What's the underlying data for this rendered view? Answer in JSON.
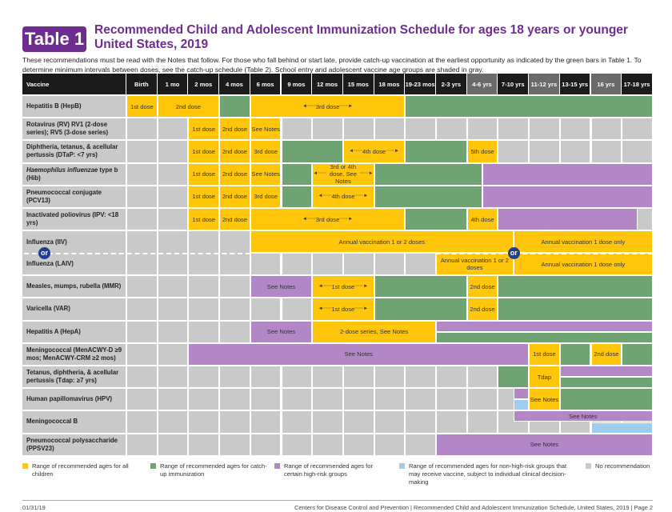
{
  "header": {
    "badge": "Table 1",
    "title_line1": "Recommended Child and Adolescent Immunization Schedule for ages 18 years or younger",
    "title_line2": "United States, 2019",
    "intro": "These recommendations must be read with the Notes that follow. For those who fall behind or start late, provide catch-up vaccination at the earliest opportunity as indicated by the green bars in Table 1. To determine minimum intervals between doses, see the catch-up schedule (Table 2). School entry and adolescent vaccine age groups are shaded in gray."
  },
  "colors": {
    "yellow": "#FFC60B",
    "green": "#6FA374",
    "purple": "#B386C6",
    "blue": "#9ECDF0",
    "gray": "#C9C9C9",
    "header": "#1b1b1b",
    "header_shaded": "#6a6a6a",
    "title": "#6E2C91",
    "or_badge": "#1f3e8f"
  },
  "columns": {
    "vaccine_header": "Vaccine",
    "ages": [
      "Birth",
      "1 mo",
      "2 mos",
      "4 mos",
      "6 mos",
      "9 mos",
      "12 mos",
      "15 mos",
      "18 mos",
      "19-23 mos",
      "2-3 yrs",
      "4-6 yrs",
      "7-10 yrs",
      "11-12 yrs",
      "13-15 yrs",
      "16 yrs",
      "17-18 yrs"
    ],
    "shaded_age_groups": [
      "4-6 yrs",
      "11-12 yrs",
      "16 yrs"
    ]
  },
  "rows": [
    {
      "name": "Hepatitis B (HepB)",
      "segments": [
        {
          "start": 0,
          "span": 1,
          "color": "yellow",
          "label": "1st dose"
        },
        {
          "start": 1,
          "span": 2,
          "color": "yellow",
          "label": "2nd dose"
        },
        {
          "start": 3,
          "span": 1,
          "color": "green"
        },
        {
          "start": 4,
          "span": 5,
          "color": "yellow",
          "label": "3rd dose",
          "arrows": true
        },
        {
          "start": 9,
          "span": 8,
          "color": "green"
        }
      ]
    },
    {
      "name": "Rotavirus (RV) RV1 (2-dose series); RV5 (3-dose series)",
      "segments": [
        {
          "start": 2,
          "span": 1,
          "color": "yellow",
          "label": "1st dose"
        },
        {
          "start": 3,
          "span": 1,
          "color": "yellow",
          "label": "2nd dose"
        },
        {
          "start": 4,
          "span": 1,
          "color": "yellow",
          "label": "See Notes"
        }
      ]
    },
    {
      "name": "Diphtheria, tetanus, & acellular pertussis (DTaP: <7 yrs)",
      "segments": [
        {
          "start": 2,
          "span": 1,
          "color": "yellow",
          "label": "1st dose"
        },
        {
          "start": 3,
          "span": 1,
          "color": "yellow",
          "label": "2nd dose"
        },
        {
          "start": 4,
          "span": 1,
          "color": "yellow",
          "label": "3rd dose"
        },
        {
          "start": 5,
          "span": 2,
          "color": "green"
        },
        {
          "start": 7,
          "span": 2,
          "color": "yellow",
          "label": "4th dose",
          "arrows": true
        },
        {
          "start": 9,
          "span": 2,
          "color": "green"
        },
        {
          "start": 11,
          "span": 1,
          "color": "yellow",
          "label": "5th dose"
        }
      ]
    },
    {
      "name_italic": "Haemophilus influenzae",
      "name": " type b (Hib)",
      "segments": [
        {
          "start": 2,
          "span": 1,
          "color": "yellow",
          "label": "1st dose"
        },
        {
          "start": 3,
          "span": 1,
          "color": "yellow",
          "label": "2nd dose"
        },
        {
          "start": 4,
          "span": 1,
          "color": "yellow",
          "label": "See Notes"
        },
        {
          "start": 5,
          "span": 1,
          "color": "green"
        },
        {
          "start": 6,
          "span": 2,
          "color": "yellow",
          "label": "3rd or 4th dose, See Notes",
          "arrows": true
        },
        {
          "start": 8,
          "span": 3.5,
          "color": "green"
        },
        {
          "start": 11.5,
          "span": 5.5,
          "color": "purple"
        }
      ]
    },
    {
      "name": "Pneumococcal conjugate (PCV13)",
      "segments": [
        {
          "start": 2,
          "span": 1,
          "color": "yellow",
          "label": "1st dose"
        },
        {
          "start": 3,
          "span": 1,
          "color": "yellow",
          "label": "2nd dose"
        },
        {
          "start": 4,
          "span": 1,
          "color": "yellow",
          "label": "3rd dose"
        },
        {
          "start": 5,
          "span": 1,
          "color": "green"
        },
        {
          "start": 6,
          "span": 2,
          "color": "yellow",
          "label": "4th dose",
          "arrows": true
        },
        {
          "start": 8,
          "span": 3.5,
          "color": "green"
        },
        {
          "start": 11.5,
          "span": 5.5,
          "color": "purple"
        }
      ]
    },
    {
      "name": "Inactivated poliovirus (IPV: <18 yrs)",
      "segments": [
        {
          "start": 2,
          "span": 1,
          "color": "yellow",
          "label": "1st dose"
        },
        {
          "start": 3,
          "span": 1,
          "color": "yellow",
          "label": "2nd dose"
        },
        {
          "start": 4,
          "span": 5,
          "color": "yellow",
          "label": "3rd dose",
          "arrows": true
        },
        {
          "start": 9,
          "span": 2,
          "color": "green"
        },
        {
          "start": 11,
          "span": 1,
          "color": "yellow",
          "label": "4th dose"
        },
        {
          "start": 12,
          "span": 4.5,
          "color": "purple"
        }
      ]
    },
    {
      "name": "Influenza (IIV)",
      "name_alt": "Influenza (LAIV)",
      "or_label": "or",
      "double": true,
      "segments": [
        {
          "start": 4,
          "span": 8.5,
          "color": "yellow",
          "part": "top",
          "label": "Annual vaccination 1 or 2 doses"
        },
        {
          "start": 12.5,
          "span": 4.5,
          "color": "yellow",
          "part": "top",
          "label": "Annual vaccination 1 dose only"
        },
        {
          "start": 10,
          "span": 2.5,
          "color": "yellow",
          "part": "bottom",
          "label": "Annual vaccination 1 or 2 doses"
        },
        {
          "start": 12.5,
          "span": 4.5,
          "color": "yellow",
          "part": "bottom",
          "label": "Annual vaccination 1 dose only"
        }
      ]
    },
    {
      "name": "Measles, mumps, rubella (MMR)",
      "segments": [
        {
          "start": 4,
          "span": 2,
          "color": "purple",
          "label": "See Notes"
        },
        {
          "start": 6,
          "span": 2,
          "color": "yellow",
          "label": "1st dose",
          "arrows": true
        },
        {
          "start": 8,
          "span": 3,
          "color": "green"
        },
        {
          "start": 11,
          "span": 1,
          "color": "yellow",
          "label": "2nd dose"
        },
        {
          "start": 12,
          "span": 5,
          "color": "green"
        }
      ]
    },
    {
      "name": "Varicella (VAR)",
      "segments": [
        {
          "start": 6,
          "span": 2,
          "color": "yellow",
          "label": "1st dose",
          "arrows": true
        },
        {
          "start": 8,
          "span": 3,
          "color": "green"
        },
        {
          "start": 11,
          "span": 1,
          "color": "yellow",
          "label": "2nd dose"
        },
        {
          "start": 12,
          "span": 5,
          "color": "green"
        }
      ]
    },
    {
      "name": "Hepatitis A (HepA)",
      "segments": [
        {
          "start": 4,
          "span": 2,
          "color": "purple",
          "label": "See Notes"
        },
        {
          "start": 6,
          "span": 4,
          "color": "yellow",
          "label": "2-dose series, See Notes"
        },
        {
          "start": 10,
          "span": 7,
          "color": "purple",
          "part": "top"
        },
        {
          "start": 10,
          "span": 7,
          "color": "green",
          "part": "bottom"
        }
      ]
    },
    {
      "name": "Meningococcal (MenACWY-D ≥9 mos; MenACWY-CRM ≥2 mos)",
      "segments": [
        {
          "start": 2,
          "span": 11,
          "color": "purple",
          "label": "See Notes"
        },
        {
          "start": 13,
          "span": 1,
          "color": "yellow",
          "label": "1st dose"
        },
        {
          "start": 14,
          "span": 1,
          "color": "green"
        },
        {
          "start": 15,
          "span": 1,
          "color": "yellow",
          "label": "2nd dose"
        },
        {
          "start": 16,
          "span": 1,
          "color": "green"
        }
      ]
    },
    {
      "name": "Tetanus, diphtheria, & acellular pertussis (Tdap: ≥7 yrs)",
      "segments": [
        {
          "start": 12,
          "span": 1,
          "color": "green"
        },
        {
          "start": 13,
          "span": 1,
          "color": "yellow",
          "label": "Tdap"
        },
        {
          "start": 14,
          "span": 3,
          "color": "purple",
          "part": "top"
        },
        {
          "start": 14,
          "span": 3,
          "color": "green",
          "part": "bottom"
        }
      ]
    },
    {
      "name": "Human papillomavirus (HPV)",
      "segments": [
        {
          "start": 12.5,
          "span": 0.5,
          "color": "purple",
          "part": "top"
        },
        {
          "start": 12.5,
          "span": 0.5,
          "color": "blue",
          "part": "bottom"
        },
        {
          "start": 13,
          "span": 1,
          "color": "yellow",
          "label": "See Notes"
        },
        {
          "start": 14,
          "span": 3,
          "color": "green"
        }
      ]
    },
    {
      "name": "Meningococcal B",
      "segments": [
        {
          "start": 12.5,
          "span": 4.5,
          "color": "purple",
          "part": "top",
          "label": "See Notes"
        },
        {
          "start": 15,
          "span": 2,
          "color": "blue",
          "part": "bottom"
        }
      ]
    },
    {
      "name": "Pneumococcal polysaccharide (PPSV23)",
      "segments": [
        {
          "start": 10,
          "span": 7,
          "color": "purple",
          "label": "See Notes"
        }
      ]
    }
  ],
  "legend": [
    {
      "color": "yellow",
      "label": "Range of recommended ages for all children"
    },
    {
      "color": "green",
      "label": "Range of recommended ages for catch-up immunization"
    },
    {
      "color": "purple",
      "label": "Range of recommended ages for certain high-risk groups"
    },
    {
      "color": "blue",
      "label": "Range of recommended ages for non-high-risk groups that may receive vaccine, subject to individual clinical decision-making"
    },
    {
      "color": "gray",
      "label": "No recommendation"
    }
  ],
  "footer": {
    "date": "01/31/19",
    "source": "Centers for Disease Control and Prevention  |  Recommended Child and Adolescent Immunization Schedule, United States, 2019  |  Page 2"
  }
}
